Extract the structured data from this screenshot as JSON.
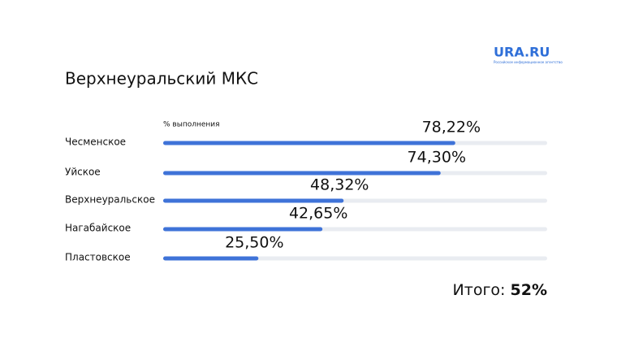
{
  "chart_data": {
    "type": "bar",
    "orientation": "horizontal",
    "title": "Верхнеуральский МКС",
    "logo": "URA.RU",
    "logo_subtitle": "Российское информационное агентство",
    "axis_label": "% выполнения",
    "categories": [
      "Чесменское",
      "Уйское",
      "Верхнеуральское",
      "Нагабайское",
      "Пластовское"
    ],
    "values": [
      78.22,
      74.3,
      48.32,
      42.65,
      25.5
    ],
    "value_labels": [
      "78,22%",
      "74,30%",
      "48,32%",
      "42,65%",
      "25,50%"
    ],
    "color": "#3f73d8",
    "track_color": "#e9ecf1",
    "xlim": [
      0,
      100
    ],
    "total_label": "Итого:",
    "total_value": "52%"
  }
}
